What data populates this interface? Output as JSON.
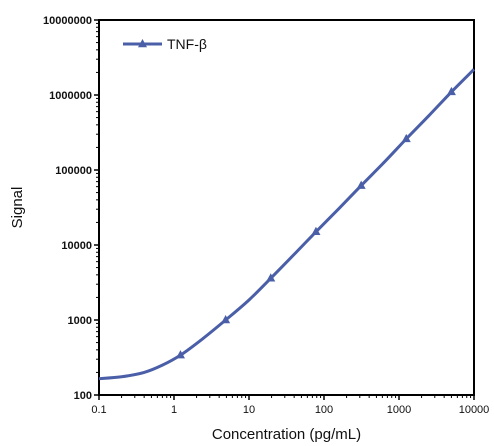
{
  "chart_data": {
    "type": "line",
    "title": "",
    "xlabel": "Concentration (pg/mL)",
    "ylabel": "Signal",
    "x_scale": "log",
    "y_scale": "log",
    "xlim": [
      0.1,
      10000
    ],
    "ylim": [
      100,
      10000000
    ],
    "x_ticks": [
      "0.1",
      "1",
      "10",
      "100",
      "1000",
      "10000"
    ],
    "y_ticks": [
      "100",
      "1000",
      "10000",
      "100000",
      "1000000",
      "10000000"
    ],
    "grid": false,
    "legend_position": "top-left",
    "series": [
      {
        "name": "TNF-β",
        "color": "#4a5fa8",
        "marker": "triangle",
        "points": [
          {
            "x": 1.22,
            "y": 340
          },
          {
            "x": 4.88,
            "y": 1000
          },
          {
            "x": 19.5,
            "y": 3600
          },
          {
            "x": 78.1,
            "y": 15000
          },
          {
            "x": 313,
            "y": 62000
          },
          {
            "x": 1250,
            "y": 260000
          },
          {
            "x": 5000,
            "y": 1100000
          }
        ],
        "curve": [
          {
            "x": 0.1,
            "y": 165
          },
          {
            "x": 0.2,
            "y": 175
          },
          {
            "x": 0.4,
            "y": 200
          },
          {
            "x": 0.7,
            "y": 250
          },
          {
            "x": 1.22,
            "y": 340
          },
          {
            "x": 2.4,
            "y": 560
          },
          {
            "x": 4.88,
            "y": 1000
          },
          {
            "x": 10,
            "y": 1850
          },
          {
            "x": 19.5,
            "y": 3600
          },
          {
            "x": 40,
            "y": 7500
          },
          {
            "x": 78.1,
            "y": 15000
          },
          {
            "x": 160,
            "y": 31000
          },
          {
            "x": 313,
            "y": 62000
          },
          {
            "x": 650,
            "y": 130000
          },
          {
            "x": 1250,
            "y": 260000
          },
          {
            "x": 2500,
            "y": 530000
          },
          {
            "x": 5000,
            "y": 1100000
          },
          {
            "x": 10000,
            "y": 2200000
          }
        ]
      }
    ]
  }
}
